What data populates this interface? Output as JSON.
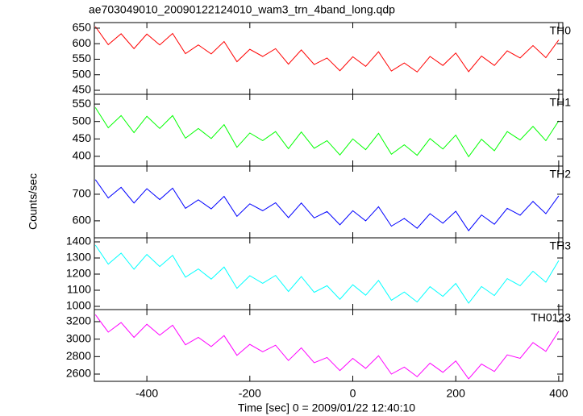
{
  "chart_data": {
    "type": "line",
    "title": "ae703049010_20090122124010_wam3_trn_4band_long.qdp",
    "xlabel": "Time [sec] 0 = 2009/01/22 12:40:10",
    "ylabel": "Counts/sec",
    "xlim": [
      -502,
      408
    ],
    "xticks": [
      -400,
      -200,
      0,
      200,
      400
    ],
    "x": [
      -500,
      -475,
      -450,
      -425,
      -400,
      -375,
      -350,
      -325,
      -300,
      -275,
      -250,
      -225,
      -200,
      -175,
      -150,
      -125,
      -100,
      -75,
      -50,
      -25,
      0,
      25,
      50,
      75,
      100,
      125,
      150,
      175,
      200,
      225,
      250,
      275,
      300,
      325,
      350,
      375,
      400
    ],
    "series": [
      {
        "name": "TH0",
        "color": "#ff0000",
        "ylim": [
          437,
          668
        ],
        "yticks": [
          450,
          500,
          550,
          600,
          650
        ],
        "values": [
          655,
          597,
          632,
          584,
          631,
          596,
          633,
          568,
          596,
          567,
          607,
          542,
          582,
          559,
          584,
          534,
          580,
          533,
          554,
          513,
          558,
          527,
          574,
          512,
          538,
          509,
          559,
          530,
          570,
          510,
          560,
          530,
          577,
          554,
          594,
          555,
          612
        ]
      },
      {
        "name": "TH1",
        "color": "#00ff00",
        "ylim": [
          372,
          578
        ],
        "yticks": [
          400,
          450,
          500,
          550
        ],
        "values": [
          540,
          482,
          517,
          468,
          515,
          480,
          517,
          452,
          480,
          451,
          491,
          426,
          467,
          445,
          471,
          422,
          470,
          423,
          445,
          404,
          450,
          419,
          466,
          406,
          433,
          403,
          451,
          421,
          461,
          399,
          449,
          416,
          471,
          447,
          486,
          445,
          502
        ]
      },
      {
        "name": "TH2",
        "color": "#0000ff",
        "ylim": [
          536,
          806
        ],
        "yticks": [
          600,
          700
        ],
        "values": [
          755,
          686,
          726,
          667,
          721,
          680,
          723,
          647,
          679,
          645,
          692,
          617,
          664,
          638,
          668,
          612,
          667,
          611,
          635,
          585,
          638,
          600,
          653,
          580,
          609,
          572,
          627,
          591,
          636,
          563,
          622,
          587,
          647,
          621,
          673,
          627,
          694
        ]
      },
      {
        "name": "TH3",
        "color": "#00ffff",
        "ylim": [
          980,
          1425
        ],
        "yticks": [
          1000,
          1100,
          1200,
          1300,
          1400
        ],
        "values": [
          1380,
          1262,
          1330,
          1230,
          1322,
          1247,
          1316,
          1181,
          1232,
          1169,
          1244,
          1112,
          1190,
          1143,
          1192,
          1092,
          1185,
          1087,
          1128,
          1044,
          1134,
          1069,
          1161,
          1038,
          1089,
          1027,
          1122,
          1062,
          1142,
          1020,
          1123,
          1067,
          1172,
          1128,
          1218,
          1150,
          1284
        ]
      },
      {
        "name": "TH0123",
        "color": "#ff00ff",
        "ylim": [
          2517,
          3338
        ],
        "yticks": [
          2600,
          2800,
          3000,
          3200
        ],
        "values": [
          3280,
          3080,
          3190,
          3020,
          3170,
          3045,
          3160,
          2935,
          3020,
          2915,
          3040,
          2815,
          2940,
          2855,
          2930,
          2755,
          2900,
          2730,
          2790,
          2640,
          2780,
          2665,
          2810,
          2600,
          2680,
          2570,
          2725,
          2620,
          2750,
          2545,
          2715,
          2630,
          2820,
          2780,
          2960,
          2860,
          3090
        ]
      }
    ]
  }
}
